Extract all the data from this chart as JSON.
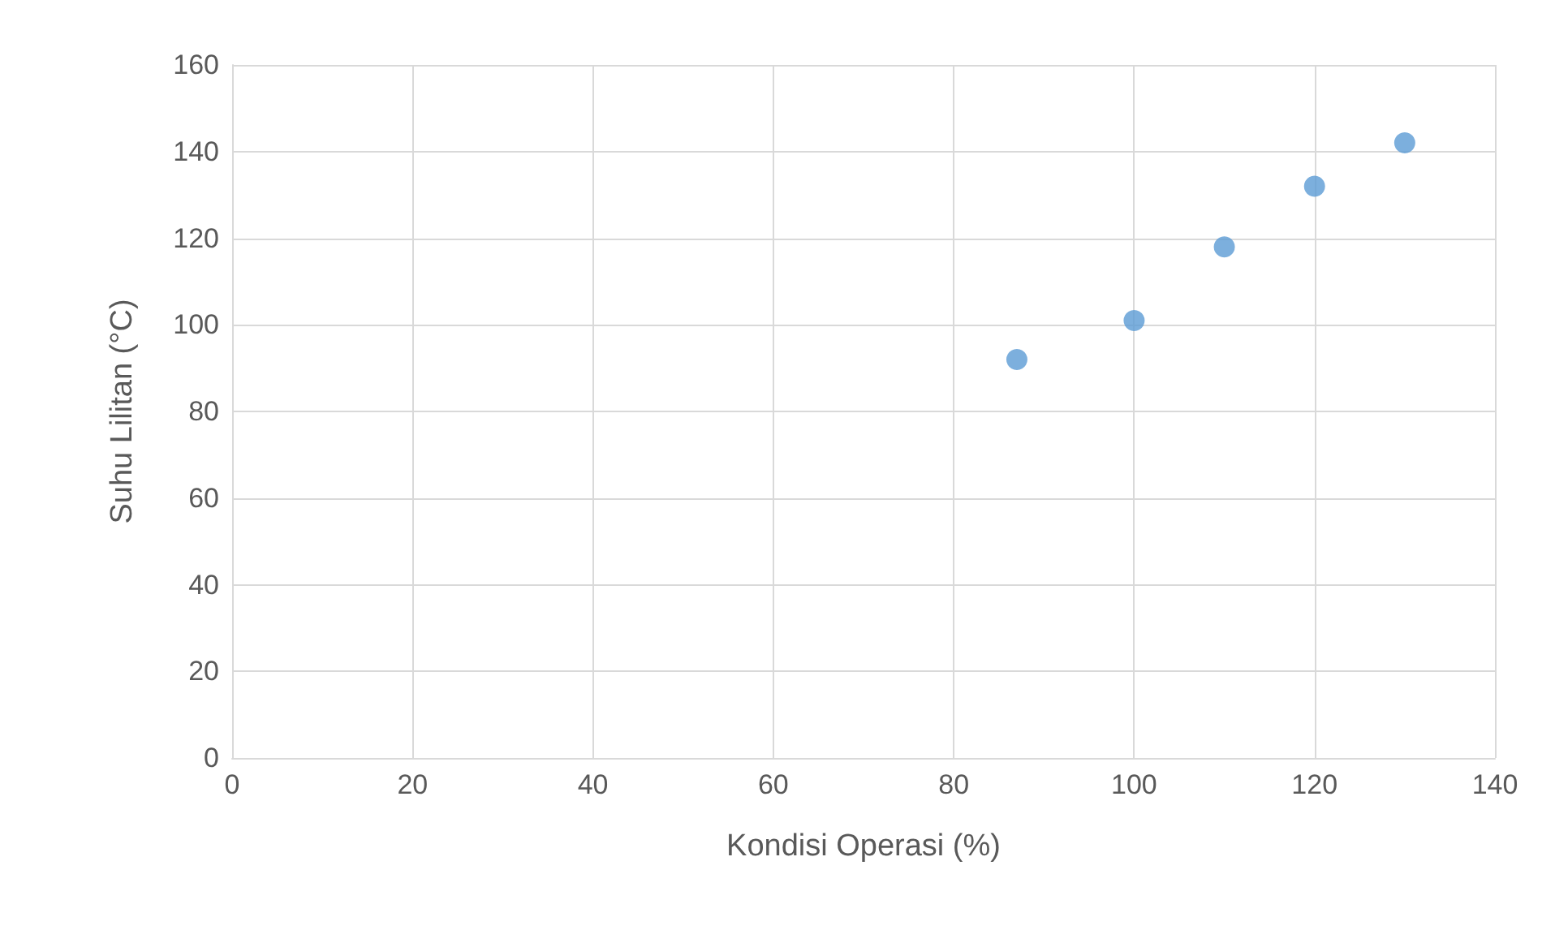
{
  "chart_data": {
    "type": "scatter",
    "xlabel": "Kondisi Operasi (%)",
    "ylabel": "Suhu Lilitan (°C)",
    "x": [
      87,
      100,
      110,
      120,
      130
    ],
    "series": [
      {
        "color": "#5b9bd5",
        "values": [
          92,
          101,
          118,
          132,
          142
        ]
      }
    ],
    "xlim": [
      0,
      140
    ],
    "xticks": [
      0,
      20,
      40,
      60,
      80,
      100,
      120,
      140
    ],
    "ylim": [
      0,
      160
    ],
    "yticks": [
      0,
      20,
      40,
      60,
      80,
      100,
      120,
      140,
      160
    ],
    "grid": true,
    "marker": "circle"
  }
}
